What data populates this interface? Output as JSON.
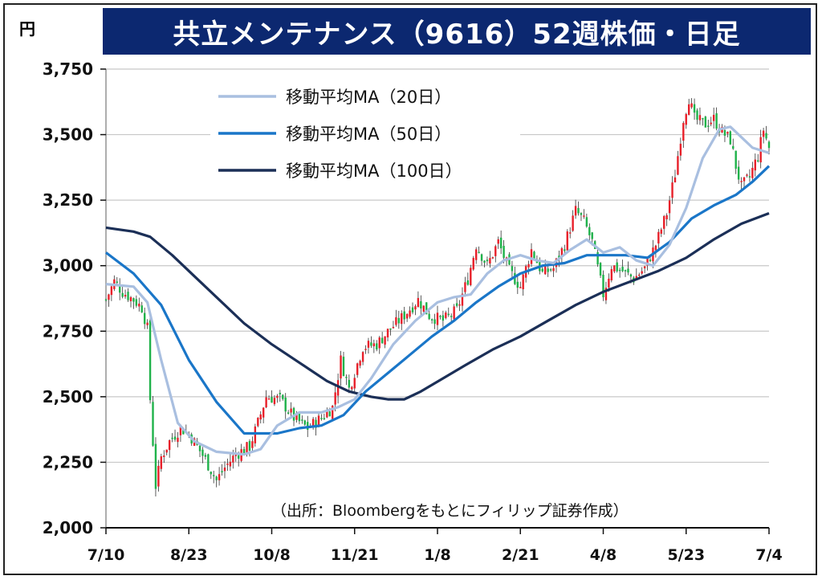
{
  "title": "共立メンテナンス（9616）52週株価・日足",
  "unit_label": "円",
  "source_note": "（出所：Bloombergをもとにフィリップ証券作成）",
  "colors": {
    "title_bg": "#0c2870",
    "up_candle": "#e8202a",
    "down_candle": "#1fb24a",
    "ma20": "#a9bfe0",
    "ma50": "#1a76c8",
    "ma100": "#1b2f57",
    "grid": "#c8c8c8"
  },
  "chart_data": {
    "type": "candlestick",
    "y_ticks": [
      "2,000",
      "2,250",
      "2,500",
      "2,750",
      "3,000",
      "3,250",
      "3,500",
      "3,750"
    ],
    "y_values": [
      2000,
      2250,
      2500,
      2750,
      3000,
      3250,
      3500,
      3750
    ],
    "ylim": [
      2000,
      3750
    ],
    "x_ticks": [
      "7/10",
      "8/23",
      "10/8",
      "11/21",
      "1/8",
      "2/21",
      "4/8",
      "5/23",
      "7/4"
    ],
    "x_tick_index": [
      0,
      30,
      60,
      90,
      120,
      150,
      180,
      210,
      240
    ],
    "n_days": 241,
    "legend": [
      {
        "label": "移動平均MA（20日）",
        "color_key": "ma20"
      },
      {
        "label": "移動平均MA（50日）",
        "color_key": "ma50"
      },
      {
        "label": "移動平均MA（100日）",
        "color_key": "ma100"
      }
    ],
    "price_path": [
      [
        0,
        2870
      ],
      [
        3,
        2940
      ],
      [
        6,
        2900
      ],
      [
        10,
        2870
      ],
      [
        13,
        2840
      ],
      [
        15,
        2760
      ],
      [
        16,
        2490
      ],
      [
        18,
        2160
      ],
      [
        20,
        2270
      ],
      [
        23,
        2330
      ],
      [
        27,
        2380
      ],
      [
        30,
        2360
      ],
      [
        33,
        2310
      ],
      [
        36,
        2260
      ],
      [
        40,
        2180
      ],
      [
        43,
        2230
      ],
      [
        47,
        2280
      ],
      [
        52,
        2310
      ],
      [
        55,
        2400
      ],
      [
        58,
        2500
      ],
      [
        63,
        2490
      ],
      [
        68,
        2420
      ],
      [
        73,
        2380
      ],
      [
        78,
        2420
      ],
      [
        82,
        2460
      ],
      [
        85,
        2640
      ],
      [
        88,
        2530
      ],
      [
        93,
        2690
      ],
      [
        98,
        2700
      ],
      [
        103,
        2760
      ],
      [
        107,
        2800
      ],
      [
        113,
        2870
      ],
      [
        117,
        2810
      ],
      [
        122,
        2790
      ],
      [
        127,
        2830
      ],
      [
        131,
        2950
      ],
      [
        134,
        3080
      ],
      [
        138,
        3000
      ],
      [
        142,
        3090
      ],
      [
        146,
        2980
      ],
      [
        150,
        2920
      ],
      [
        154,
        3060
      ],
      [
        158,
        2970
      ],
      [
        162,
        2990
      ],
      [
        166,
        3080
      ],
      [
        170,
        3210
      ],
      [
        173,
        3170
      ],
      [
        176,
        3090
      ],
      [
        180,
        2890
      ],
      [
        183,
        3000
      ],
      [
        187,
        2980
      ],
      [
        191,
        2950
      ],
      [
        195,
        2990
      ],
      [
        199,
        3080
      ],
      [
        203,
        3200
      ],
      [
        206,
        3350
      ],
      [
        209,
        3560
      ],
      [
        211,
        3640
      ],
      [
        213,
        3560
      ],
      [
        217,
        3540
      ],
      [
        220,
        3560
      ],
      [
        223,
        3510
      ],
      [
        226,
        3480
      ],
      [
        228,
        3380
      ],
      [
        230,
        3300
      ],
      [
        233,
        3340
      ],
      [
        236,
        3420
      ],
      [
        238,
        3520
      ],
      [
        240,
        3450
      ]
    ],
    "ma20_path": [
      [
        0,
        2930
      ],
      [
        10,
        2920
      ],
      [
        15,
        2860
      ],
      [
        20,
        2640
      ],
      [
        26,
        2400
      ],
      [
        32,
        2330
      ],
      [
        40,
        2290
      ],
      [
        50,
        2280
      ],
      [
        56,
        2300
      ],
      [
        62,
        2390
      ],
      [
        70,
        2440
      ],
      [
        78,
        2440
      ],
      [
        84,
        2460
      ],
      [
        90,
        2490
      ],
      [
        96,
        2570
      ],
      [
        104,
        2700
      ],
      [
        112,
        2790
      ],
      [
        120,
        2860
      ],
      [
        126,
        2880
      ],
      [
        132,
        2890
      ],
      [
        138,
        2970
      ],
      [
        144,
        3020
      ],
      [
        150,
        3040
      ],
      [
        156,
        3020
      ],
      [
        162,
        3010
      ],
      [
        168,
        3060
      ],
      [
        174,
        3100
      ],
      [
        180,
        3050
      ],
      [
        186,
        3070
      ],
      [
        192,
        3020
      ],
      [
        198,
        3000
      ],
      [
        204,
        3080
      ],
      [
        210,
        3220
      ],
      [
        216,
        3410
      ],
      [
        222,
        3520
      ],
      [
        226,
        3530
      ],
      [
        230,
        3490
      ],
      [
        234,
        3450
      ],
      [
        240,
        3430
      ]
    ],
    "ma50_path": [
      [
        0,
        3050
      ],
      [
        10,
        2970
      ],
      [
        20,
        2850
      ],
      [
        30,
        2640
      ],
      [
        40,
        2480
      ],
      [
        50,
        2360
      ],
      [
        55,
        2360
      ],
      [
        62,
        2360
      ],
      [
        70,
        2380
      ],
      [
        78,
        2390
      ],
      [
        86,
        2430
      ],
      [
        94,
        2520
      ],
      [
        102,
        2590
      ],
      [
        110,
        2660
      ],
      [
        118,
        2730
      ],
      [
        126,
        2790
      ],
      [
        134,
        2860
      ],
      [
        142,
        2920
      ],
      [
        150,
        2970
      ],
      [
        158,
        3000
      ],
      [
        166,
        3010
      ],
      [
        174,
        3040
      ],
      [
        180,
        3040
      ],
      [
        188,
        3040
      ],
      [
        196,
        3030
      ],
      [
        204,
        3090
      ],
      [
        212,
        3180
      ],
      [
        220,
        3230
      ],
      [
        228,
        3270
      ],
      [
        234,
        3320
      ],
      [
        240,
        3380
      ]
    ],
    "ma100_path": [
      [
        0,
        3145
      ],
      [
        10,
        3130
      ],
      [
        16,
        3110
      ],
      [
        24,
        3040
      ],
      [
        32,
        2960
      ],
      [
        40,
        2880
      ],
      [
        50,
        2780
      ],
      [
        60,
        2700
      ],
      [
        70,
        2630
      ],
      [
        80,
        2560
      ],
      [
        88,
        2520
      ],
      [
        96,
        2500
      ],
      [
        102,
        2490
      ],
      [
        108,
        2490
      ],
      [
        114,
        2520
      ],
      [
        122,
        2570
      ],
      [
        130,
        2620
      ],
      [
        140,
        2680
      ],
      [
        150,
        2730
      ],
      [
        160,
        2790
      ],
      [
        170,
        2850
      ],
      [
        180,
        2900
      ],
      [
        190,
        2940
      ],
      [
        200,
        2980
      ],
      [
        210,
        3030
      ],
      [
        220,
        3100
      ],
      [
        230,
        3160
      ],
      [
        240,
        3200
      ]
    ]
  }
}
